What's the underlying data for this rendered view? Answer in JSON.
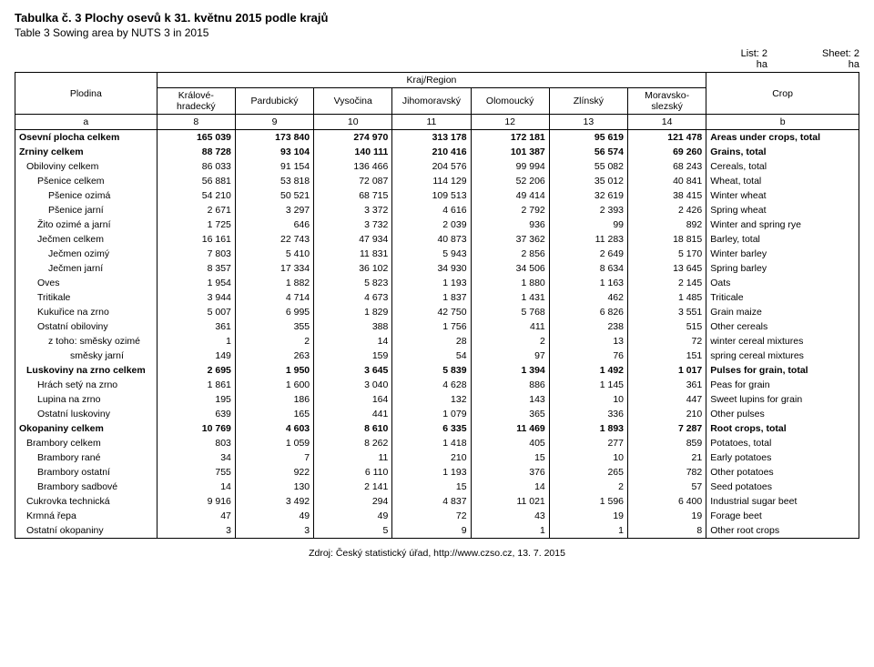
{
  "title_cz": "Tabulka č. 3  Plochy osevů k 31. květnu 2015 podle krajů",
  "title_en": "Table 3  Sowing area by NUTS 3 in 2015",
  "list_label": "List: 2",
  "sheet_label": "Sheet: 2",
  "unit_cz": "ha",
  "unit_en": "ha",
  "header": {
    "plodina": "Plodina",
    "region": "Kraj/Region",
    "crop": "Crop",
    "cols": [
      "Králové-hradecký",
      "Pardubický",
      "Vysočina",
      "Jihomoravský",
      "Olomoucký",
      "Zlínský",
      "Moravsko-slezský"
    ],
    "a": "a",
    "b": "b",
    "nums": [
      "8",
      "9",
      "10",
      "11",
      "12",
      "13",
      "14"
    ]
  },
  "rows": [
    {
      "plodina": "Osevní plocha celkem",
      "vals": [
        "165 039",
        "173 840",
        "274 970",
        "313 178",
        "172 181",
        "95 619",
        "121 478"
      ],
      "crop": "Areas under crops, total",
      "bold": true,
      "indent": 0
    },
    {
      "plodina": "Zrniny celkem",
      "vals": [
        "88 728",
        "93 104",
        "140 111",
        "210 416",
        "101 387",
        "56 574",
        "69 260"
      ],
      "crop": "Grains, total",
      "bold": true,
      "indent": 0
    },
    {
      "plodina": "Obiloviny celkem",
      "vals": [
        "86 033",
        "91 154",
        "136 466",
        "204 576",
        "99 994",
        "55 082",
        "68 243"
      ],
      "crop": "Cereals, total",
      "indent": 1
    },
    {
      "plodina": "Pšenice celkem",
      "vals": [
        "56 881",
        "53 818",
        "72 087",
        "114 129",
        "52 206",
        "35 012",
        "40 841"
      ],
      "crop": "Wheat, total",
      "indent": 2
    },
    {
      "plodina": "Pšenice ozimá",
      "vals": [
        "54 210",
        "50 521",
        "68 715",
        "109 513",
        "49 414",
        "32 619",
        "38 415"
      ],
      "crop": "Winter wheat",
      "indent": 3
    },
    {
      "plodina": "Pšenice jarní",
      "vals": [
        "2 671",
        "3 297",
        "3 372",
        "4 616",
        "2 792",
        "2 393",
        "2 426"
      ],
      "crop": "Spring wheat",
      "indent": 3
    },
    {
      "plodina": "Žito ozimé a jarní",
      "vals": [
        "1 725",
        "646",
        "3 732",
        "2 039",
        "936",
        "99",
        "892"
      ],
      "crop": "Winter and spring rye",
      "indent": 2
    },
    {
      "plodina": "Ječmen celkem",
      "vals": [
        "16 161",
        "22 743",
        "47 934",
        "40 873",
        "37 362",
        "11 283",
        "18 815"
      ],
      "crop": "Barley, total",
      "indent": 2
    },
    {
      "plodina": "Ječmen ozimý",
      "vals": [
        "7 803",
        "5 410",
        "11 831",
        "5 943",
        "2 856",
        "2 649",
        "5 170"
      ],
      "crop": "Winter barley",
      "indent": 3
    },
    {
      "plodina": "Ječmen jarní",
      "vals": [
        "8 357",
        "17 334",
        "36 102",
        "34 930",
        "34 506",
        "8 634",
        "13 645"
      ],
      "crop": "Spring barley",
      "indent": 3
    },
    {
      "plodina": "Oves",
      "vals": [
        "1 954",
        "1 882",
        "5 823",
        "1 193",
        "1 880",
        "1 163",
        "2 145"
      ],
      "crop": "Oats",
      "indent": 2
    },
    {
      "plodina": "Tritikale",
      "vals": [
        "3 944",
        "4 714",
        "4 673",
        "1 837",
        "1 431",
        "462",
        "1 485"
      ],
      "crop": "Triticale",
      "indent": 2
    },
    {
      "plodina": "Kukuřice na zrno",
      "vals": [
        "5 007",
        "6 995",
        "1 829",
        "42 750",
        "5 768",
        "6 826",
        "3 551"
      ],
      "crop": "Grain maize",
      "indent": 2
    },
    {
      "plodina": "Ostatní obiloviny",
      "vals": [
        "361",
        "355",
        "388",
        "1 756",
        "411",
        "238",
        "515"
      ],
      "crop": "Other cereals",
      "indent": 2
    },
    {
      "plodina": "z toho: směsky ozimé",
      "vals": [
        "1",
        "2",
        "14",
        "28",
        "2",
        "13",
        "72"
      ],
      "crop": "winter cereal mixtures",
      "indent": 3
    },
    {
      "plodina": "směsky jarní",
      "vals": [
        "149",
        "263",
        "159",
        "54",
        "97",
        "76",
        "151"
      ],
      "crop": "spring cereal mixtures",
      "indent": 3,
      "extra_indent": true
    },
    {
      "plodina": "Luskoviny na zrno celkem",
      "vals": [
        "2 695",
        "1 950",
        "3 645",
        "5 839",
        "1 394",
        "1 492",
        "1 017"
      ],
      "crop": "Pulses for grain, total",
      "bold": true,
      "indent": 1
    },
    {
      "plodina": "Hrách setý na zrno",
      "vals": [
        "1 861",
        "1 600",
        "3 040",
        "4 628",
        "886",
        "1 145",
        "361"
      ],
      "crop": "Peas for grain",
      "indent": 2
    },
    {
      "plodina": "Lupina na zrno",
      "vals": [
        "195",
        "186",
        "164",
        "132",
        "143",
        "10",
        "447"
      ],
      "crop": "Sweet lupins for grain",
      "indent": 2
    },
    {
      "plodina": "Ostatní luskoviny",
      "vals": [
        "639",
        "165",
        "441",
        "1 079",
        "365",
        "336",
        "210"
      ],
      "crop": "Other pulses",
      "indent": 2
    },
    {
      "plodina": "Okopaniny celkem",
      "vals": [
        "10 769",
        "4 603",
        "8 610",
        "6 335",
        "11 469",
        "1 893",
        "7 287"
      ],
      "crop": "Root crops, total",
      "bold": true,
      "indent": 0
    },
    {
      "plodina": "Brambory celkem",
      "vals": [
        "803",
        "1 059",
        "8 262",
        "1 418",
        "405",
        "277",
        "859"
      ],
      "crop": "Potatoes, total",
      "indent": 1
    },
    {
      "plodina": "Brambory rané",
      "vals": [
        "34",
        "7",
        "11",
        "210",
        "15",
        "10",
        "21"
      ],
      "crop": "Early potatoes",
      "indent": 2
    },
    {
      "plodina": "Brambory ostatní",
      "vals": [
        "755",
        "922",
        "6 110",
        "1 193",
        "376",
        "265",
        "782"
      ],
      "crop": "Other potatoes",
      "indent": 2
    },
    {
      "plodina": "Brambory sadbové",
      "vals": [
        "14",
        "130",
        "2 141",
        "15",
        "14",
        "2",
        "57"
      ],
      "crop": "Seed potatoes",
      "indent": 2
    },
    {
      "plodina": "Cukrovka technická",
      "vals": [
        "9 916",
        "3 492",
        "294",
        "4 837",
        "11 021",
        "1 596",
        "6 400"
      ],
      "crop": "Industrial sugar beet",
      "indent": 1
    },
    {
      "plodina": "Krmná řepa",
      "vals": [
        "47",
        "49",
        "49",
        "72",
        "43",
        "19",
        "19"
      ],
      "crop": "Forage beet",
      "indent": 1
    },
    {
      "plodina": "Ostatní okopaniny",
      "vals": [
        "3",
        "3",
        "5",
        "9",
        "1",
        "1",
        "8"
      ],
      "crop": "Other root crops",
      "indent": 1
    }
  ],
  "source": "Zdroj: Český statistický úřad, http://www.czso.cz, 13. 7. 2015"
}
